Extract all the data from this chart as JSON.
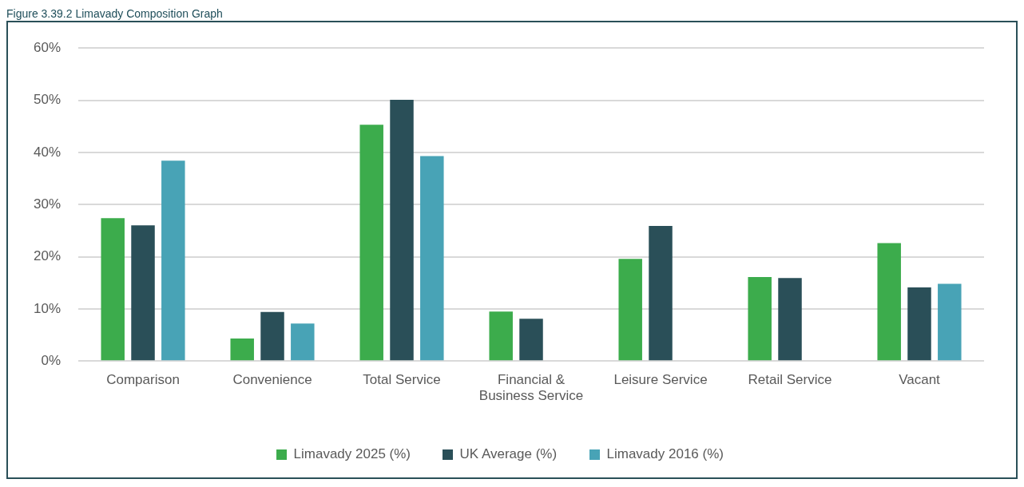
{
  "chart_data": {
    "type": "bar",
    "title": "Figure 3.39.2 Limavady Composition Graph",
    "categories": [
      "Comparison",
      "Convenience",
      "Total Service",
      "Financial & Business Service",
      "Leisure Service",
      "Retail Service",
      "Vacant"
    ],
    "series": [
      {
        "name": "Limavady 2025 (%)",
        "color": "#3cac4c",
        "values": [
          27.4,
          4.3,
          45.3,
          9.5,
          19.6,
          16.1,
          22.6
        ]
      },
      {
        "name": "UK Average (%)",
        "color": "#2a4f58",
        "values": [
          26.0,
          9.4,
          50.1,
          8.1,
          25.9,
          15.9,
          14.1
        ]
      },
      {
        "name": "Limavady 2016 (%)",
        "color": "#48a3b6",
        "values": [
          38.4,
          7.2,
          39.3,
          null,
          null,
          null,
          14.8
        ]
      }
    ],
    "ylim": [
      0,
      60
    ],
    "yticks": [
      {
        "value": 0,
        "label": "0%"
      },
      {
        "value": 10,
        "label": "10%"
      },
      {
        "value": 20,
        "label": "20%"
      },
      {
        "value": 30,
        "label": "30%"
      },
      {
        "value": 40,
        "label": "40%"
      },
      {
        "value": 50,
        "label": "50%"
      },
      {
        "value": 60,
        "label": "60%"
      }
    ],
    "grid": "y",
    "legend": "bottom"
  }
}
